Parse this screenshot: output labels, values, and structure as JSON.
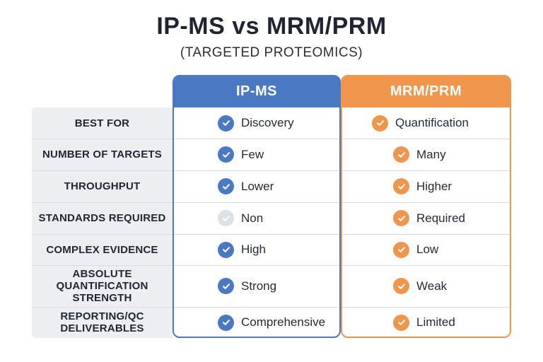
{
  "title": "IP-MS vs MRM/PRM",
  "subtitle": "(TARGETED PROTEOMICS)",
  "columns": {
    "ipms": "IP-MS",
    "mrm": "MRM/PRM"
  },
  "colors": {
    "ipms": "#4a78c2",
    "mrm": "#f0954c",
    "inactive": "#dde0e4"
  },
  "rows": [
    {
      "label": "BEST FOR",
      "ipms": "Discovery",
      "mrm": "Quantification",
      "ipms_icon": "check-circle-icon",
      "mrm_icon": "check-circle-icon"
    },
    {
      "label": "NUMBER OF TARGETS",
      "ipms": "Few",
      "mrm": "Many",
      "ipms_icon": "check-circle-icon",
      "mrm_icon": "check-circle-icon"
    },
    {
      "label": "THROUGHPUT",
      "ipms": "Lower",
      "mrm": "Higher",
      "ipms_icon": "check-circle-icon",
      "mrm_icon": "check-circle-icon"
    },
    {
      "label": "STANDARDS REQUIRED",
      "ipms": "Non",
      "mrm": "Required",
      "ipms_icon": "check-circle-grey-icon",
      "mrm_icon": "check-circle-icon"
    },
    {
      "label": "COMPLEX EVIDENCE",
      "ipms": "High",
      "mrm": "Low",
      "ipms_icon": "check-circle-icon",
      "mrm_icon": "check-circle-icon"
    },
    {
      "label": "ABSOLUTE QUANTIFICATION STRENGTH",
      "ipms": "Strong",
      "mrm": "Weak",
      "ipms_icon": "check-circle-icon",
      "mrm_icon": "check-circle-icon"
    },
    {
      "label": "REPORTING/QC DELIVERABLES",
      "ipms": "Comprehensive",
      "mrm": "Limited",
      "ipms_icon": "check-circle-icon",
      "mrm_icon": "check-circle-icon"
    }
  ]
}
